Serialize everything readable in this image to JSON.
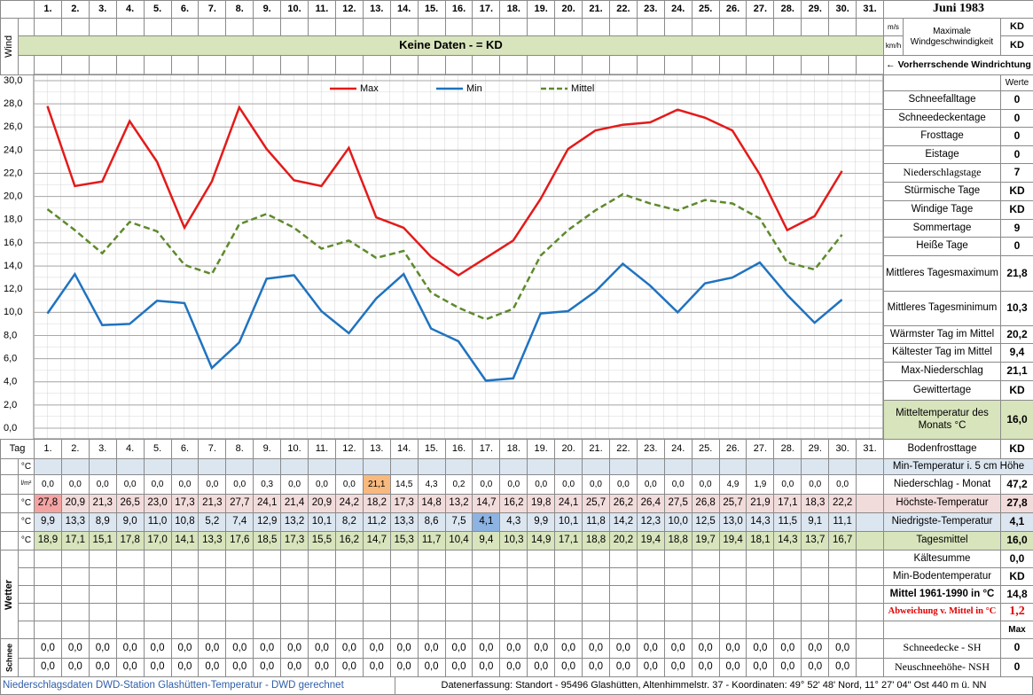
{
  "header": {
    "title": "Juni 1983",
    "days": [
      "1.",
      "2.",
      "3.",
      "4.",
      "5.",
      "6.",
      "7.",
      "8.",
      "9.",
      "10.",
      "11.",
      "12.",
      "13.",
      "14.",
      "15.",
      "16.",
      "17.",
      "18.",
      "19.",
      "20.",
      "21.",
      "22.",
      "23.",
      "24.",
      "25.",
      "26.",
      "27.",
      "28.",
      "29.",
      "30.",
      "31."
    ]
  },
  "wind": {
    "label": "Wind",
    "units": [
      "m/s",
      "km/h"
    ],
    "note": "Keine Daten -  = KD",
    "max_label": "Maximale Windgeschwindigkeit",
    "max_values": [
      "KD",
      "KD"
    ],
    "direction": "← Vorherrschende Windrichtung"
  },
  "chart_data": {
    "type": "line",
    "ylim": [
      0,
      30
    ],
    "yticks": [
      {
        "value": 0,
        "label": "0,0"
      },
      {
        "value": 2,
        "label": "2,0"
      },
      {
        "value": 4,
        "label": "4,0"
      },
      {
        "value": 6,
        "label": "6,0"
      },
      {
        "value": 8,
        "label": "8,0"
      },
      {
        "value": 10,
        "label": "10,0"
      },
      {
        "value": 12,
        "label": "12,0"
      },
      {
        "value": 14,
        "label": "14,0"
      },
      {
        "value": 16,
        "label": "16,0"
      },
      {
        "value": 18,
        "label": "18,0"
      },
      {
        "value": 20,
        "label": "20,0"
      },
      {
        "value": 22,
        "label": "22,0"
      },
      {
        "value": 24,
        "label": "24,0"
      },
      {
        "value": 26,
        "label": "26,0"
      },
      {
        "value": 28,
        "label": "28,0"
      },
      {
        "value": 30,
        "label": "30,0"
      }
    ],
    "grid": true,
    "legend": "top",
    "series": [
      {
        "name": "Max",
        "color": "#e41a1a",
        "style": "solid",
        "values": [
          27.8,
          20.9,
          21.3,
          26.5,
          23.0,
          17.3,
          21.3,
          27.7,
          24.1,
          21.4,
          20.9,
          24.2,
          18.2,
          17.3,
          14.8,
          13.2,
          14.7,
          16.2,
          19.8,
          24.1,
          25.7,
          26.2,
          26.4,
          27.5,
          26.8,
          25.7,
          21.9,
          17.1,
          18.3,
          22.2
        ]
      },
      {
        "name": "Min",
        "color": "#1f73c0",
        "style": "solid",
        "values": [
          9.9,
          13.3,
          8.9,
          9.0,
          11.0,
          10.8,
          5.2,
          7.4,
          12.9,
          13.2,
          10.1,
          8.2,
          11.2,
          13.3,
          8.6,
          7.5,
          4.1,
          4.3,
          9.9,
          10.1,
          11.8,
          14.2,
          12.3,
          10.0,
          12.5,
          13.0,
          14.3,
          11.5,
          9.1,
          11.1
        ]
      },
      {
        "name": "Mittel",
        "color": "#5e8a2c",
        "style": "dashed",
        "values": [
          18.9,
          17.1,
          15.1,
          17.8,
          17.0,
          14.1,
          13.3,
          17.6,
          18.5,
          17.3,
          15.5,
          16.2,
          14.7,
          15.3,
          11.7,
          10.4,
          9.4,
          10.3,
          14.9,
          17.1,
          18.8,
          20.2,
          19.4,
          18.8,
          19.7,
          19.4,
          18.1,
          14.3,
          13.7,
          16.7
        ]
      }
    ]
  },
  "table": {
    "tag_label": "Tag",
    "days": [
      "1.",
      "2.",
      "3.",
      "4.",
      "5.",
      "6.",
      "7.",
      "8.",
      "9.",
      "10.",
      "11.",
      "12.",
      "13.",
      "14.",
      "15.",
      "16.",
      "17.",
      "18.",
      "19.",
      "20.",
      "21.",
      "22.",
      "23.",
      "24.",
      "25.",
      "26.",
      "27.",
      "28.",
      "29.",
      "30.",
      "31."
    ],
    "rows": [
      {
        "unit": "°C"
      },
      {
        "unit": "l/m²",
        "cells": [
          "0,0",
          "0,0",
          "0,0",
          "0,0",
          "0,0",
          "0,0",
          "0,0",
          "0,0",
          "0,3",
          "0,0",
          "0,0",
          "0,0",
          "21,1",
          "14,5",
          "4,3",
          "0,2",
          "0,0",
          "0,0",
          "0,0",
          "0,0",
          "0,0",
          "0,0",
          "0,0",
          "0,0",
          "0,0",
          "4,9",
          "1,9",
          "0,0",
          "0,0",
          "0,0"
        ]
      },
      {
        "unit": "°C",
        "cells": [
          "27,8",
          "20,9",
          "21,3",
          "26,5",
          "23,0",
          "17,3",
          "21,3",
          "27,7",
          "24,1",
          "21,4",
          "20,9",
          "24,2",
          "18,2",
          "17,3",
          "14,8",
          "13,2",
          "14,7",
          "16,2",
          "19,8",
          "24,1",
          "25,7",
          "26,2",
          "26,4",
          "27,5",
          "26,8",
          "25,7",
          "21,9",
          "17,1",
          "18,3",
          "22,2"
        ]
      },
      {
        "unit": "°C",
        "cells": [
          "9,9",
          "13,3",
          "8,9",
          "9,0",
          "11,0",
          "10,8",
          "5,2",
          "7,4",
          "12,9",
          "13,2",
          "10,1",
          "8,2",
          "11,2",
          "13,3",
          "8,6",
          "7,5",
          "4,1",
          "4,3",
          "9,9",
          "10,1",
          "11,8",
          "14,2",
          "12,3",
          "10,0",
          "12,5",
          "13,0",
          "14,3",
          "11,5",
          "9,1",
          "11,1"
        ]
      },
      {
        "unit": "°C",
        "cells": [
          "18,9",
          "17,1",
          "15,1",
          "17,8",
          "17,0",
          "14,1",
          "13,3",
          "17,6",
          "18,5",
          "17,3",
          "15,5",
          "16,2",
          "14,7",
          "15,3",
          "11,7",
          "10,4",
          "9,4",
          "10,3",
          "14,9",
          "17,1",
          "18,8",
          "20,2",
          "19,4",
          "18,8",
          "19,7",
          "19,4",
          "18,1",
          "14,3",
          "13,7",
          "16,7"
        ]
      }
    ],
    "wetter_label": "Wetter",
    "schnee_label": "Schnee",
    "snow_rows": [
      [
        "0,0",
        "0,0",
        "0,0",
        "0,0",
        "0,0",
        "0,0",
        "0,0",
        "0,0",
        "0,0",
        "0,0",
        "0,0",
        "0,0",
        "0,0",
        "0,0",
        "0,0",
        "0,0",
        "0,0",
        "0,0",
        "0,0",
        "0,0",
        "0,0",
        "0,0",
        "0,0",
        "0,0",
        "0,0",
        "0,0",
        "0,0",
        "0,0",
        "0,0",
        "0,0"
      ],
      [
        "0,0",
        "0,0",
        "0,0",
        "0,0",
        "0,0",
        "0,0",
        "0,0",
        "0,0",
        "0,0",
        "0,0",
        "0,0",
        "0,0",
        "0,0",
        "0,0",
        "0,0",
        "0,0",
        "0,0",
        "0,0",
        "0,0",
        "0,0",
        "0,0",
        "0,0",
        "0,0",
        "0,0",
        "0,0",
        "0,0",
        "0,0",
        "0,0",
        "0,0",
        "0,0"
      ]
    ]
  },
  "stats": {
    "header": "Werte",
    "rows": [
      {
        "label": "Schneefalltage",
        "value": "0"
      },
      {
        "label": "Schneedeckentage",
        "value": "0"
      },
      {
        "label": "Frosttage",
        "value": "0"
      },
      {
        "label": "Eistage",
        "value": "0"
      },
      {
        "label": "Niederschlagstage",
        "value": "7"
      },
      {
        "label": "Stürmische Tage",
        "value": "KD"
      },
      {
        "label": "Windige Tage",
        "value": "KD"
      },
      {
        "label": "Sommertage",
        "value": "9"
      },
      {
        "label": "Heiße Tage",
        "value": "0"
      },
      {
        "label": "Mittleres Tagesmaximum",
        "value": "21,8"
      },
      {
        "label": "Mittleres Tagesminimum",
        "value": "10,3"
      },
      {
        "label": "Wärmster Tag im Mittel",
        "value": "20,2"
      },
      {
        "label": "Kältester Tag im Mittel",
        "value": "9,4"
      },
      {
        "label": "Max-Niederschlag",
        "value": "21,1"
      },
      {
        "label": "Gewittertage",
        "value": "KD"
      },
      {
        "label": "Mitteltemperatur des Monats °C",
        "value": "16,0"
      },
      {
        "label": "Bodenfrosttage",
        "value": "KD"
      }
    ]
  },
  "summary": {
    "rows": [
      {
        "label": "Min-Temperatur i. 5 cm Höhe"
      },
      {
        "label": "Niederschlag - Monat",
        "value": "47,2"
      },
      {
        "label": "Höchste-Temperatur",
        "value": "27,8"
      },
      {
        "label": "Niedrigste-Temperatur",
        "value": "4,1"
      },
      {
        "label": "Tagesmittel",
        "value": "16,0"
      },
      {
        "label": "Kältesumme",
        "value": "0,0"
      },
      {
        "label": "Min-Bodentemperatur",
        "value": "KD"
      },
      {
        "label": "Mittel 1961-1990 in °C",
        "value": "14,8"
      },
      {
        "label": "Abweichung v. Mittel in °C",
        "value": "1,2"
      }
    ],
    "max_header": "Max",
    "snow": [
      {
        "label": "Schneedecke -  SH",
        "value": "0"
      },
      {
        "label": "Neuschneehöhe- NSH",
        "value": "0"
      }
    ]
  },
  "footer": {
    "left": "Niederschlagsdaten DWD-Station Glashütten-Temperatur -  DWD gerechnet",
    "right": "Datenerfassung: Standort -  95496  Glashütten, Altenhimmelstr. 37 - Koordinaten: 49° 52' 48' Nord,   11° 27' 04\" Ost   440 m ü. NN"
  }
}
